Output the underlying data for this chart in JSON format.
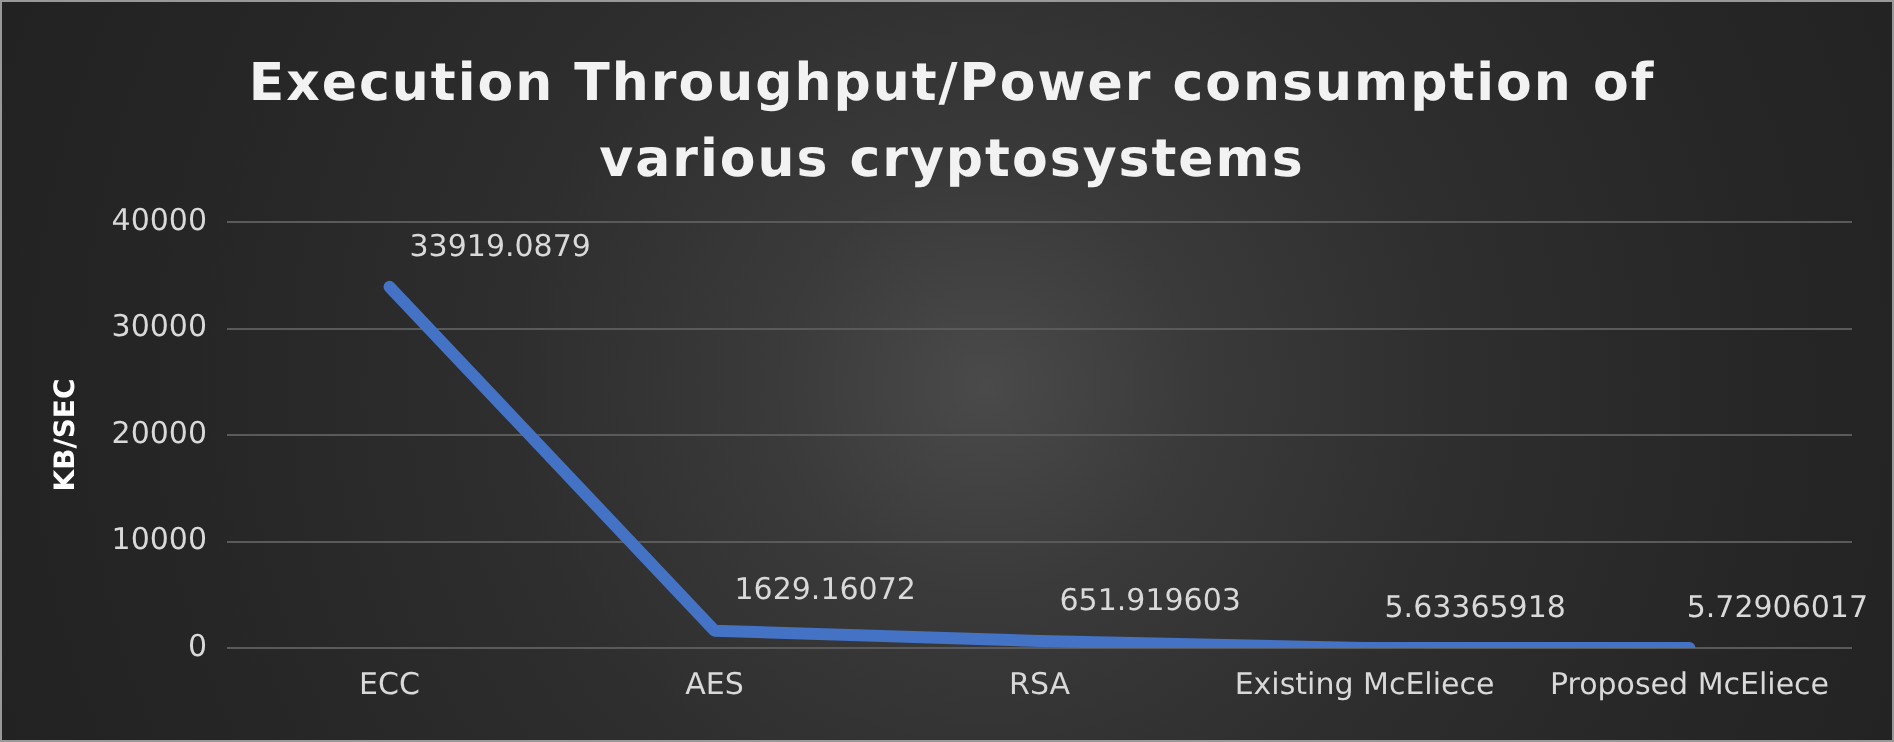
{
  "chart_data": {
    "type": "line",
    "title": "Execution Throughput/Power consumption of various cryptosystems",
    "ylabel": "KB/SEC",
    "categories": [
      "ECC",
      "AES",
      "RSA",
      "Existing McEliece",
      "Proposed McEliece"
    ],
    "series": [
      {
        "color": "#4472c4",
        "values": [
          33919.0879,
          1629.16072,
          651.919603,
          5.63365918,
          5.72906017
        ]
      }
    ],
    "ylim": [
      0,
      40000
    ],
    "yticks": [
      0,
      10000,
      20000,
      30000,
      40000
    ],
    "grid": "y",
    "legend": false,
    "marker": "none",
    "line_style": "solid",
    "data_labels": true
  }
}
